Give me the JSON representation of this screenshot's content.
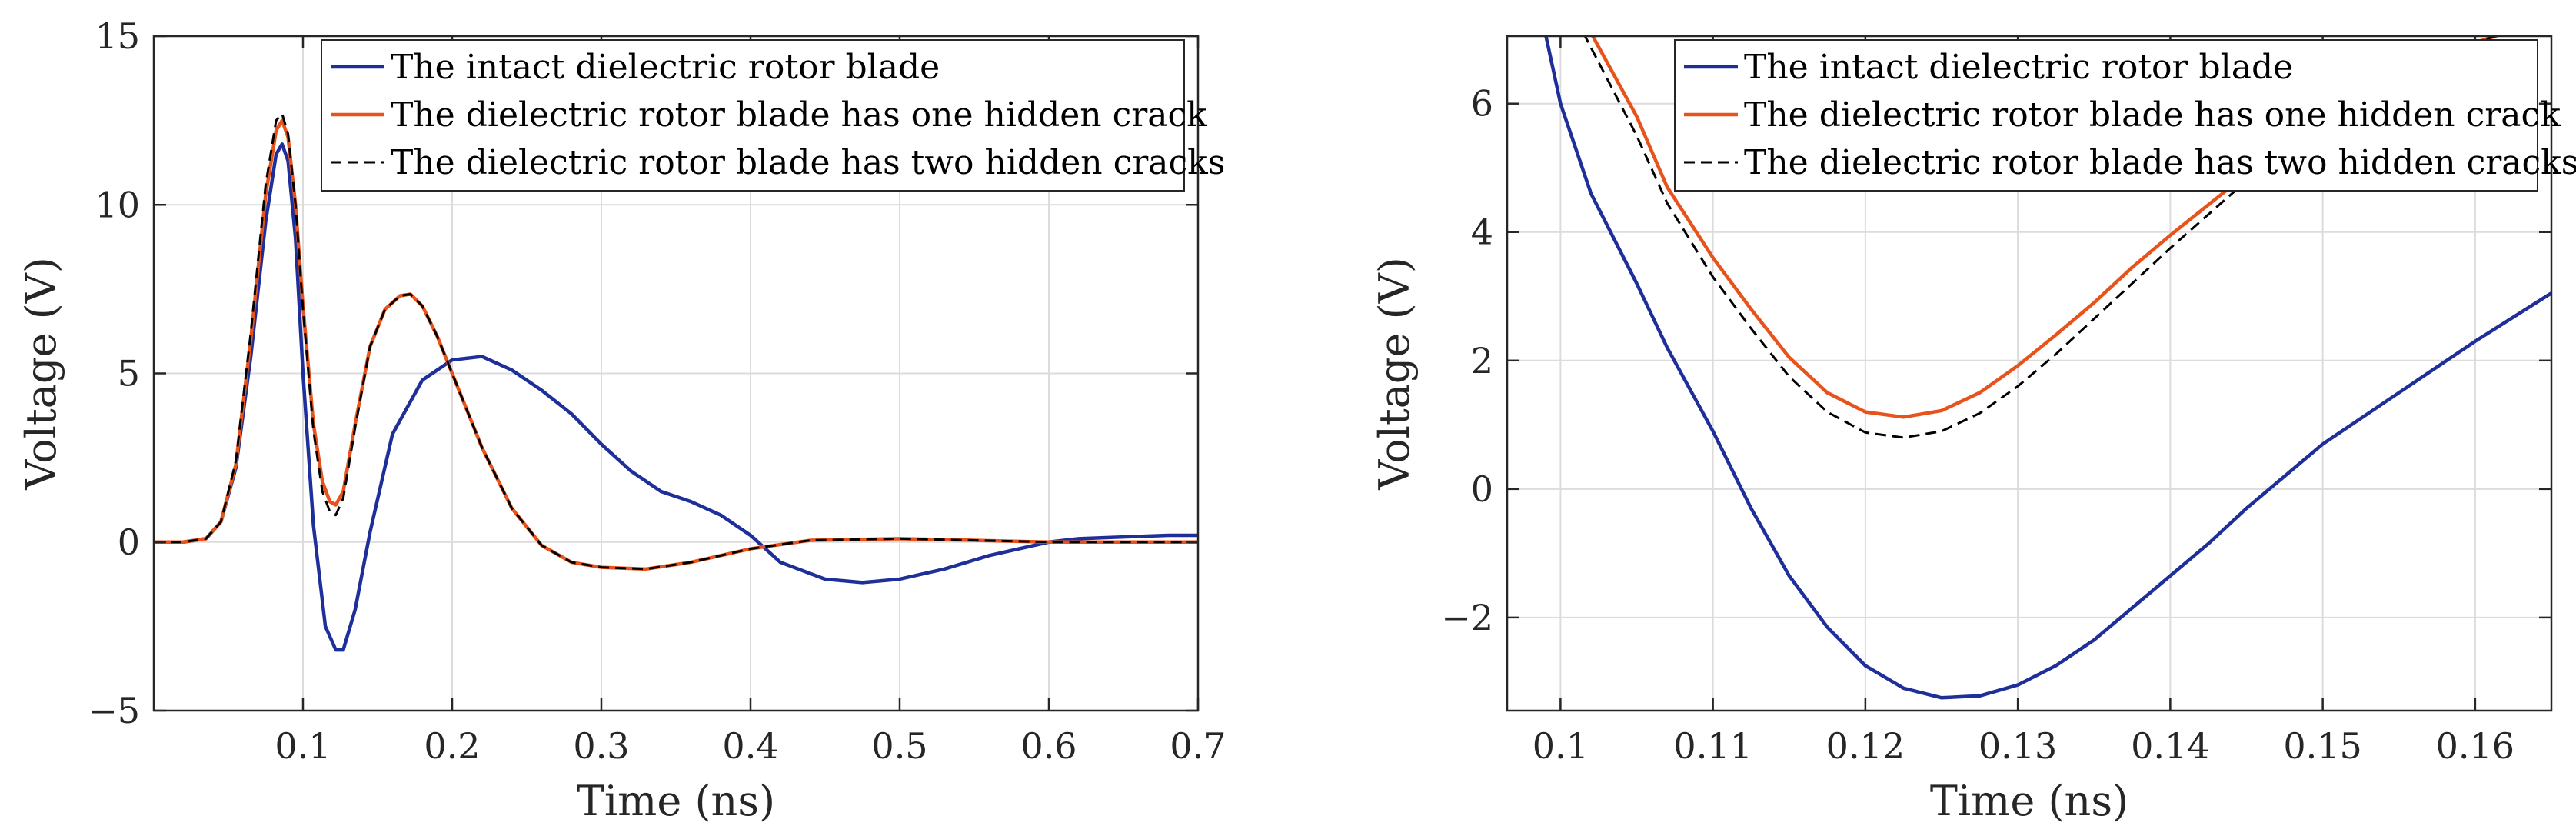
{
  "chart_data": [
    {
      "type": "line",
      "panel": "left",
      "title": "",
      "xlabel": "Time (ns)",
      "ylabel": "Voltage (V)",
      "xlim": [
        0,
        0.7
      ],
      "ylim": [
        -5,
        15
      ],
      "xticks": [
        0.1,
        0.2,
        0.3,
        0.4,
        0.5,
        0.6,
        0.7
      ],
      "xtick_labels": [
        "0.1",
        "0.2",
        "0.3",
        "0.4",
        "0.5",
        "0.6",
        "0.7"
      ],
      "yticks": [
        -5,
        0,
        5,
        10,
        15
      ],
      "ytick_labels": [
        "−5",
        "0",
        "5",
        "10",
        "15"
      ],
      "grid": true,
      "legend_position": "top-right",
      "series": [
        {
          "name": "The intact dielectric rotor blade",
          "color": "#1f2f9a",
          "dash": "solid",
          "x": [
            0,
            0.02,
            0.035,
            0.045,
            0.055,
            0.065,
            0.075,
            0.082,
            0.086,
            0.09,
            0.095,
            0.1,
            0.107,
            0.115,
            0.122,
            0.127,
            0.135,
            0.145,
            0.16,
            0.18,
            0.2,
            0.22,
            0.24,
            0.26,
            0.28,
            0.3,
            0.32,
            0.34,
            0.36,
            0.38,
            0.4,
            0.42,
            0.45,
            0.475,
            0.5,
            0.53,
            0.56,
            0.6,
            0.62,
            0.65,
            0.68,
            0.7
          ],
          "y": [
            0,
            0,
            0.1,
            0.6,
            2.2,
            5.5,
            9.5,
            11.5,
            11.8,
            11.3,
            9,
            5,
            0.5,
            -2.5,
            -3.2,
            -3.2,
            -2,
            0.3,
            3.2,
            4.8,
            5.4,
            5.5,
            5.1,
            4.5,
            3.8,
            2.9,
            2.1,
            1.5,
            1.2,
            0.8,
            0.2,
            -0.6,
            -1.1,
            -1.2,
            -1.1,
            -0.8,
            -0.4,
            0,
            0.1,
            0.15,
            0.2,
            0.2
          ]
        },
        {
          "name": "The dielectric rotor blade has one hidden crack",
          "color": "#e8531c",
          "dash": "solid",
          "x": [
            0,
            0.02,
            0.035,
            0.045,
            0.055,
            0.065,
            0.075,
            0.082,
            0.086,
            0.09,
            0.095,
            0.1,
            0.107,
            0.113,
            0.118,
            0.122,
            0.127,
            0.135,
            0.145,
            0.155,
            0.165,
            0.172,
            0.18,
            0.19,
            0.2,
            0.22,
            0.24,
            0.26,
            0.28,
            0.3,
            0.33,
            0.36,
            0.4,
            0.44,
            0.5,
            0.55,
            0.6,
            0.65,
            0.7
          ],
          "y": [
            0,
            0,
            0.1,
            0.6,
            2.3,
            6,
            10.3,
            12.2,
            12.5,
            12,
            10,
            7,
            3.5,
            1.8,
            1.2,
            1.1,
            1.5,
            3.5,
            5.8,
            6.9,
            7.3,
            7.35,
            7,
            6.1,
            5,
            2.8,
            1,
            -0.1,
            -0.6,
            -0.75,
            -0.8,
            -0.6,
            -0.2,
            0.05,
            0.1,
            0.05,
            0,
            0,
            0
          ]
        },
        {
          "name": "The dielectric rotor blade has two hidden cracks",
          "color": "#000000",
          "dash": "dashed",
          "x": [
            0,
            0.02,
            0.035,
            0.045,
            0.055,
            0.065,
            0.075,
            0.082,
            0.086,
            0.09,
            0.095,
            0.1,
            0.107,
            0.113,
            0.118,
            0.122,
            0.127,
            0.135,
            0.145,
            0.155,
            0.165,
            0.172,
            0.18,
            0.19,
            0.2,
            0.22,
            0.24,
            0.26,
            0.28,
            0.3,
            0.33,
            0.36,
            0.4,
            0.44,
            0.5,
            0.55,
            0.6,
            0.65,
            0.7
          ],
          "y": [
            0,
            0,
            0.1,
            0.6,
            2.4,
            6.2,
            10.6,
            12.5,
            12.7,
            12.1,
            10,
            6.9,
            3.3,
            1.5,
            0.9,
            0.8,
            1.3,
            3.4,
            5.8,
            6.9,
            7.3,
            7.35,
            7,
            6.1,
            5,
            2.8,
            1,
            -0.1,
            -0.6,
            -0.75,
            -0.8,
            -0.6,
            -0.2,
            0.05,
            0.1,
            0.05,
            0,
            0,
            0
          ]
        }
      ]
    },
    {
      "type": "line",
      "panel": "right",
      "title": "",
      "xlabel": "Time (ns)",
      "ylabel": "Voltage (V)",
      "xlim": [
        0.0965,
        0.165
      ],
      "ylim": [
        -3.45,
        7.05
      ],
      "xticks": [
        0.1,
        0.11,
        0.12,
        0.13,
        0.14,
        0.15,
        0.16
      ],
      "xtick_labels": [
        "0.1",
        "0.11",
        "0.12",
        "0.13",
        "0.14",
        "0.15",
        "0.16"
      ],
      "yticks": [
        -2,
        0,
        2,
        4,
        6
      ],
      "ytick_labels": [
        "−2",
        "0",
        "2",
        "4",
        "6"
      ],
      "grid": true,
      "legend_position": "top-right",
      "series": [
        {
          "name": "The intact dielectric rotor blade",
          "color": "#1f2f9a",
          "dash": "solid",
          "x": [
            0.099,
            0.1,
            0.102,
            0.105,
            0.107,
            0.11,
            0.1125,
            0.115,
            0.1175,
            0.12,
            0.1225,
            0.125,
            0.1275,
            0.13,
            0.1325,
            0.135,
            0.1375,
            0.14,
            0.1425,
            0.145,
            0.1475,
            0.15,
            0.155,
            0.16,
            0.165
          ],
          "y": [
            7.1,
            6.0,
            4.6,
            3.2,
            2.2,
            0.9,
            -0.3,
            -1.35,
            -2.15,
            -2.75,
            -3.1,
            -3.25,
            -3.22,
            -3.05,
            -2.75,
            -2.35,
            -1.85,
            -1.35,
            -0.85,
            -0.3,
            0.2,
            0.7,
            1.5,
            2.3,
            3.05
          ]
        },
        {
          "name": "The dielectric rotor blade has one hidden crack",
          "color": "#e8531c",
          "dash": "solid",
          "x": [
            0.102,
            0.105,
            0.107,
            0.11,
            0.1125,
            0.115,
            0.1175,
            0.12,
            0.1225,
            0.125,
            0.1275,
            0.13,
            0.1325,
            0.135,
            0.1375,
            0.14,
            0.145,
            0.15,
            0.155,
            0.16,
            0.162
          ],
          "y": [
            7.1,
            5.8,
            4.7,
            3.6,
            2.8,
            2.05,
            1.5,
            1.2,
            1.12,
            1.22,
            1.5,
            1.92,
            2.4,
            2.9,
            3.45,
            3.95,
            4.9,
            5.8,
            6.5,
            6.95,
            7.1
          ]
        },
        {
          "name": "The dielectric rotor blade has two hidden cracks",
          "color": "#000000",
          "dash": "dashed",
          "x": [
            0.1015,
            0.105,
            0.107,
            0.11,
            0.1125,
            0.115,
            0.1175,
            0.12,
            0.1225,
            0.125,
            0.1275,
            0.13,
            0.1325,
            0.135,
            0.1375,
            0.14,
            0.145,
            0.15,
            0.155,
            0.16,
            0.162
          ],
          "y": [
            7.1,
            5.5,
            4.45,
            3.3,
            2.5,
            1.75,
            1.2,
            0.88,
            0.8,
            0.9,
            1.18,
            1.6,
            2.1,
            2.65,
            3.2,
            3.75,
            4.8,
            5.75,
            6.5,
            6.95,
            7.1
          ]
        }
      ]
    }
  ]
}
